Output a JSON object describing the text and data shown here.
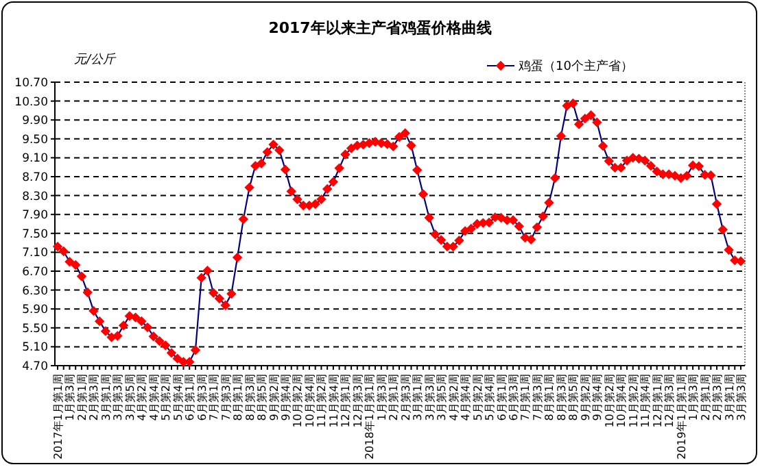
{
  "chart_data": {
    "type": "line",
    "title": "2017年以来主产省鸡蛋价格曲线",
    "ylabel": "元/公斤",
    "categories": [
      "2017年1月第1周",
      null,
      "1月第3周",
      null,
      "2月第1周",
      null,
      "2月第3周",
      null,
      "3月第1周",
      null,
      "3月第3周",
      null,
      "3月第5周",
      null,
      "4月第2周",
      null,
      "4月第4周",
      null,
      "5月第2周",
      null,
      "5月第4周",
      null,
      "6月第1周",
      null,
      "6月第3周",
      null,
      "7月第1周",
      null,
      "7月第3周",
      null,
      "8月第1周",
      null,
      "8月第3周",
      null,
      "8月第5周",
      null,
      "9月第2周",
      null,
      "9月第4周",
      null,
      "10月第2周",
      null,
      "10月第4周",
      null,
      "11月第2周",
      null,
      "11月第4周",
      null,
      "12月第1周",
      null,
      "12月第3周",
      null,
      "2018年1月第1周",
      null,
      "1月第3周",
      null,
      "2月第1周",
      null,
      "2月第3周",
      null,
      "3月第1周",
      null,
      "3月第3周",
      null,
      "3月第5周",
      null,
      "4月第2周",
      null,
      "4月第4周",
      null,
      "5月第2周",
      null,
      "5月第4周",
      null,
      "6月第1周",
      null,
      "6月第3周",
      null,
      "7月第1周",
      null,
      "7月第3周",
      null,
      "8月第1周",
      null,
      "8月第3周",
      null,
      "8月第5周",
      null,
      "9月第2周",
      null,
      "9月第4周",
      null,
      "10月第2周",
      null,
      "10月第4周",
      null,
      "11月第2周",
      null,
      "11月第4周",
      null,
      "12月第1周",
      null,
      "12月第3周",
      null,
      "2019年1月第1周",
      null,
      "1月第3周",
      null,
      "2月第1周",
      null,
      "2月第3周",
      null,
      "3月第1周",
      null,
      "3月第3周"
    ],
    "series": [
      {
        "name": "鸡蛋（10个主产省）",
        "color": "#ff0000",
        "values": [
          7.22,
          7.12,
          6.9,
          6.83,
          6.59,
          6.25,
          5.86,
          5.64,
          5.43,
          5.3,
          5.33,
          5.55,
          5.75,
          5.72,
          5.64,
          5.51,
          5.32,
          5.22,
          5.13,
          4.97,
          4.85,
          4.78,
          4.78,
          5.03,
          6.56,
          6.71,
          6.24,
          6.12,
          5.98,
          6.22,
          6.99,
          7.8,
          8.47,
          8.93,
          8.98,
          9.22,
          9.38,
          9.26,
          8.85,
          8.39,
          8.22,
          8.09,
          8.09,
          8.12,
          8.22,
          8.44,
          8.59,
          8.88,
          9.17,
          9.3,
          9.36,
          9.38,
          9.41,
          9.44,
          9.41,
          9.39,
          9.34,
          9.54,
          9.62,
          9.36,
          8.84,
          8.33,
          7.83,
          7.48,
          7.36,
          7.22,
          7.22,
          7.35,
          7.55,
          7.6,
          7.7,
          7.72,
          7.73,
          7.84,
          7.83,
          7.78,
          7.78,
          7.65,
          7.41,
          7.37,
          7.63,
          7.86,
          8.15,
          8.67,
          9.56,
          10.2,
          10.25,
          9.81,
          9.93,
          10.0,
          9.85,
          9.35,
          9.03,
          8.89,
          8.89,
          9.04,
          9.1,
          9.08,
          9.04,
          8.93,
          8.81,
          8.75,
          8.75,
          8.72,
          8.67,
          8.72,
          8.94,
          8.92,
          8.74,
          8.73,
          8.12,
          7.58,
          7.15,
          6.93,
          6.91
        ]
      }
    ],
    "ylim": [
      4.7,
      10.7
    ],
    "yticks": [
      {
        "value": 4.7,
        "label": "4.70"
      },
      {
        "value": 5.1,
        "label": "5.10"
      },
      {
        "value": 5.5,
        "label": "5.50"
      },
      {
        "value": 5.9,
        "label": "5.90"
      },
      {
        "value": 6.3,
        "label": "6.30"
      },
      {
        "value": 6.7,
        "label": "6.70"
      },
      {
        "value": 7.1,
        "label": "7.10"
      },
      {
        "value": 7.5,
        "label": "7.50"
      },
      {
        "value": 7.9,
        "label": "7.90"
      },
      {
        "value": 8.3,
        "label": "8.30"
      },
      {
        "value": 8.7,
        "label": "8.70"
      },
      {
        "value": 9.1,
        "label": "9.10"
      },
      {
        "value": 9.5,
        "label": "9.50"
      },
      {
        "value": 9.9,
        "label": "9.90"
      },
      {
        "value": 10.3,
        "label": "10.30"
      },
      {
        "value": 10.7,
        "label": "10.70"
      }
    ],
    "grid": "y",
    "legend": "top right",
    "marker": "diamond",
    "line_style": "solid"
  }
}
